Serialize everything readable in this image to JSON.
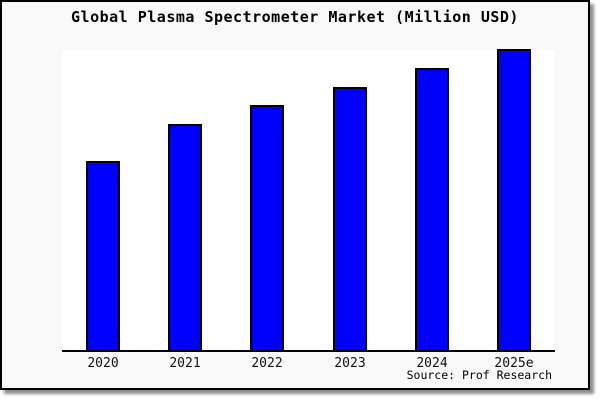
{
  "card": {
    "background": "#f9f9f9",
    "border_color": "#000000",
    "shadow_color": "#8f8f8f"
  },
  "title": "Global Plasma Spectrometer Market (Million USD)",
  "source_note": "Source: Prof Research",
  "chart_data": {
    "type": "bar",
    "title": "Global Plasma Spectrometer Market (Million USD)",
    "categories": [
      "2020",
      "2021",
      "2022",
      "2023",
      "2024",
      "2025e"
    ],
    "values": [
      62.7,
      75.0,
      81.3,
      87.3,
      93.7,
      100.0
    ],
    "value_basis": "relative index estimated from bar heights, 2025e = 100 (no y-axis labels shown)",
    "xlabel": "",
    "ylabel": "",
    "ylim": [
      0,
      101
    ],
    "grid": false,
    "legend": false,
    "bar_color": "#0000ff",
    "bar_border_color": "#000000",
    "plot_background": "#ffffff",
    "source_note": "Source: Prof Research"
  }
}
